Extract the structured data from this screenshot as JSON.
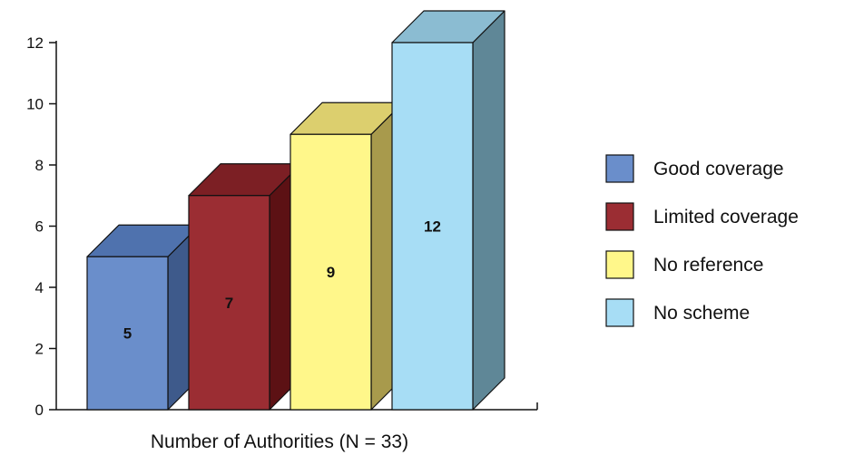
{
  "chart_data": {
    "type": "bar",
    "categories": [
      "Good coverage",
      "Limited coverage",
      "No reference",
      "No scheme"
    ],
    "values": [
      5,
      7,
      9,
      12
    ],
    "data_labels": [
      "5",
      "7",
      "9",
      "12"
    ],
    "xlabel": "Number of Authorities (N = 33)",
    "ylabel": "",
    "ylim": [
      0,
      12
    ],
    "yticks": [
      "0",
      "2",
      "4",
      "6",
      "8",
      "10",
      "12"
    ],
    "ytick_values": [
      0,
      2,
      4,
      6,
      8,
      10,
      12
    ],
    "grid": false,
    "style": "3d",
    "legend": {
      "placement": "right",
      "entries": [
        "Good coverage",
        "Limited coverage",
        "No reference",
        "No scheme"
      ]
    },
    "colors": [
      {
        "front": "#6a8ecb",
        "top": "#4f72ae",
        "side": "#3e5a8b"
      },
      {
        "front": "#9b2d33",
        "top": "#7c1f24",
        "side": "#5c1114"
      },
      {
        "front": "#fff78a",
        "top": "#dccf6e",
        "side": "#a89a4c"
      },
      {
        "front": "#a7ddf5",
        "top": "#8bbcd2",
        "side": "#5f8797"
      }
    ]
  }
}
